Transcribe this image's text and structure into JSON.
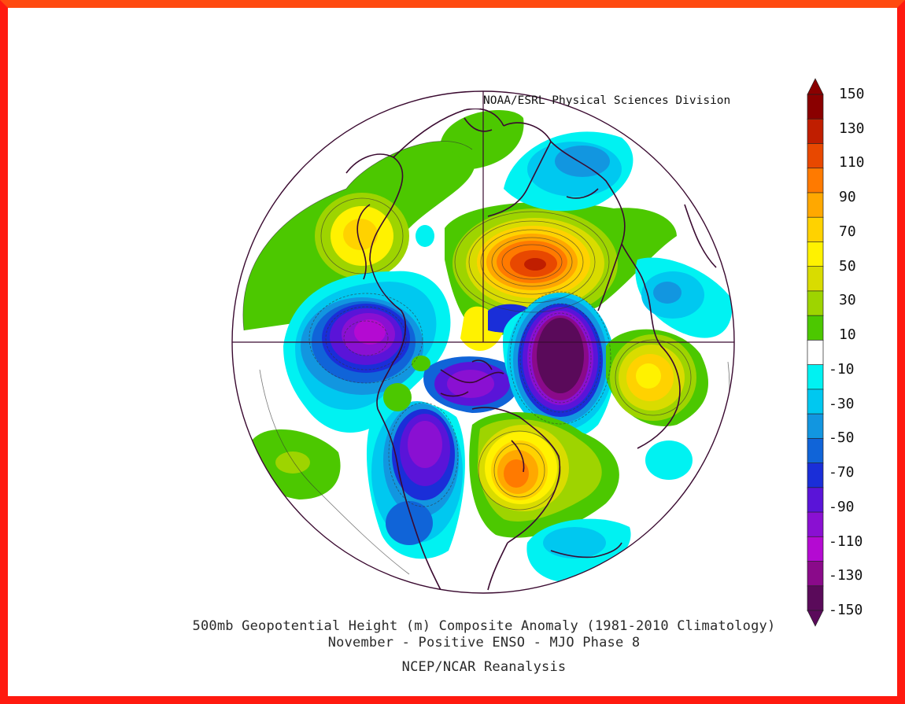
{
  "credit": "NOAA/ESRL Physical Sciences Division",
  "caption": {
    "line1": "500mb Geopotential Height (m) Composite Anomaly (1981-2010 Climatology)",
    "line2": "November - Positive ENSO - MJO Phase 8",
    "line3": "NCEP/NCAR Reanalysis"
  },
  "colorbar": {
    "labels": [
      "150",
      "130",
      "110",
      "90",
      "70",
      "50",
      "30",
      "10",
      "-10",
      "-30",
      "-50",
      "-70",
      "-90",
      "-110",
      "-130",
      "-150"
    ],
    "colors": [
      "#8a0000",
      "#c01e00",
      "#e84800",
      "#ff7a00",
      "#ffa800",
      "#ffd200",
      "#fff200",
      "#d9dc00",
      "#9ed400",
      "#4cc800",
      "#ffffff",
      "#00f2f2",
      "#00c8f0",
      "#1296e0",
      "#1064d8",
      "#1a2ed8",
      "#5a14d8",
      "#8a10d2",
      "#b40ad2",
      "#8a0a8a",
      "#5a0a5a"
    ],
    "units": "m"
  },
  "map": {
    "projection": "north-polar-stereographic",
    "frame_color": "#ff2010",
    "coast_color": "#3a0a30"
  }
}
